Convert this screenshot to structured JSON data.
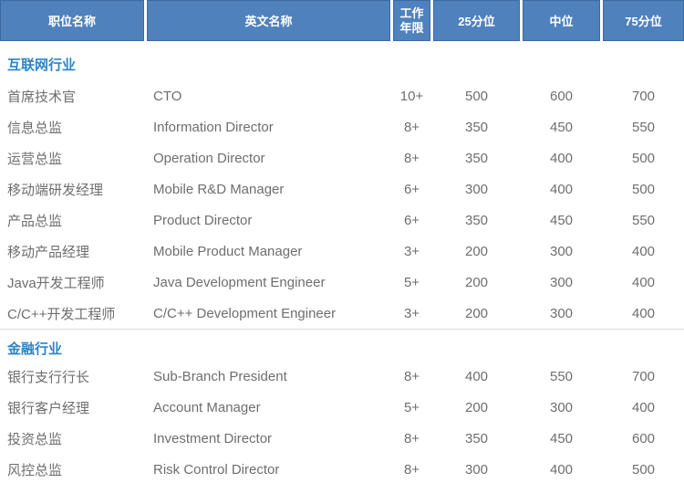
{
  "header": {
    "columns": {
      "position": "职位名称",
      "english": "英文名称",
      "years": "工作\n年限",
      "p25": "25分位",
      "median": "中位",
      "p75": "75分位"
    }
  },
  "sections": [
    {
      "title": "互联网行业",
      "rows": [
        [
          "首席技术官",
          "CTO",
          "10+",
          "500",
          "600",
          "700"
        ],
        [
          "信息总监",
          "Information Director",
          "8+",
          "350",
          "450",
          "550"
        ],
        [
          "运营总监",
          "Operation Director",
          "8+",
          "350",
          "400",
          "500"
        ],
        [
          "移动端研发经理",
          "Mobile R&D Manager",
          "6+",
          "300",
          "400",
          "500"
        ],
        [
          "产品总监",
          "Product Director",
          "6+",
          "350",
          "450",
          "550"
        ],
        [
          "移动产品经理",
          "Mobile Product Manager",
          "3+",
          "200",
          "300",
          "400"
        ],
        [
          "Java开发工程师",
          "Java Development Engineer",
          "5+",
          "200",
          "300",
          "400"
        ],
        [
          "C/C++开发工程师",
          "C/C++ Development Engineer",
          "3+",
          "200",
          "300",
          "400"
        ]
      ]
    },
    {
      "title": "金融行业",
      "rows": [
        [
          "银行支行行长",
          "Sub-Branch President",
          "8+",
          "400",
          "550",
          "700"
        ],
        [
          "银行客户经理",
          "Account Manager",
          "5+",
          "200",
          "300",
          "400"
        ],
        [
          "投资总监",
          "Investment Director",
          "8+",
          "350",
          "450",
          "600"
        ],
        [
          "风控总监",
          "Risk Control Director",
          "8+",
          "300",
          "400",
          "500"
        ]
      ]
    }
  ],
  "colors": {
    "header_background": "#4f81bd",
    "header_border": "#3d6a9e",
    "header_text": "#ffffff",
    "section_title_text": "#2b85c6",
    "body_text": "#6e6e6e",
    "section_divider": "#d9d9d9"
  }
}
